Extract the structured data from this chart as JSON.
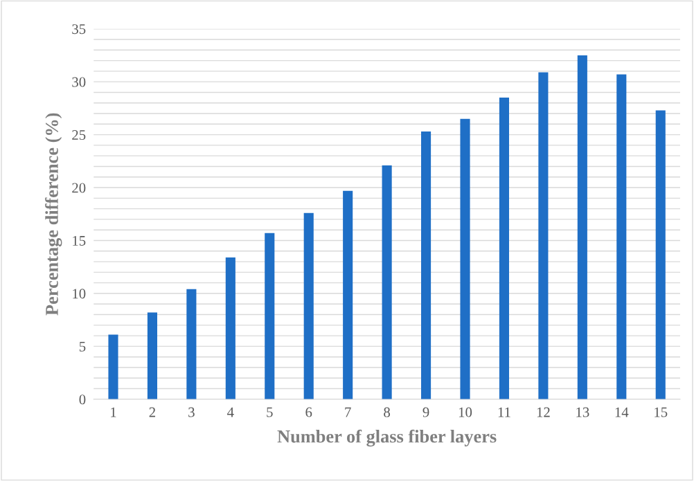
{
  "chart_data": {
    "type": "bar",
    "xlabel": "Number of glass fiber layers",
    "ylabel": "Percentage difference (%)",
    "categories": [
      "1",
      "2",
      "3",
      "4",
      "5",
      "6",
      "7",
      "8",
      "9",
      "10",
      "11",
      "12",
      "13",
      "14",
      "15"
    ],
    "values": [
      6.1,
      8.2,
      10.4,
      13.4,
      15.7,
      17.6,
      19.7,
      22.1,
      25.3,
      26.5,
      28.5,
      30.9,
      32.5,
      30.7,
      27.3
    ],
    "color": "#1f6fc6",
    "ylim": [
      0,
      35
    ],
    "yticks": [
      0,
      {
        "value": 1,
        "label": null
      },
      {
        "value": 2,
        "label": null
      },
      {
        "value": 3,
        "label": null
      },
      {
        "value": 4,
        "label": null
      },
      5,
      {
        "value": 6,
        "label": null
      },
      {
        "value": 7,
        "label": null
      },
      {
        "value": 8,
        "label": null
      },
      {
        "value": 9,
        "label": null
      },
      10,
      {
        "value": 11,
        "label": null
      },
      {
        "value": 12,
        "label": null
      },
      {
        "value": 13,
        "label": null
      },
      {
        "value": 14,
        "label": null
      },
      15,
      {
        "value": 16,
        "label": null
      },
      {
        "value": 17,
        "label": null
      },
      {
        "value": 18,
        "label": null
      },
      {
        "value": 19,
        "label": null
      },
      20,
      {
        "value": 21,
        "label": null
      },
      {
        "value": 22,
        "label": null
      },
      {
        "value": 23,
        "label": null
      },
      {
        "value": 24,
        "label": null
      },
      25,
      {
        "value": 26,
        "label": null
      },
      {
        "value": 27,
        "label": null
      },
      {
        "value": 28,
        "label": null
      },
      {
        "value": 29,
        "label": null
      },
      30,
      {
        "value": 31,
        "label": null
      },
      {
        "value": 32,
        "label": null
      },
      {
        "value": 33,
        "label": null
      },
      {
        "value": 34,
        "label": null
      },
      35
    ],
    "grid": "y"
  }
}
